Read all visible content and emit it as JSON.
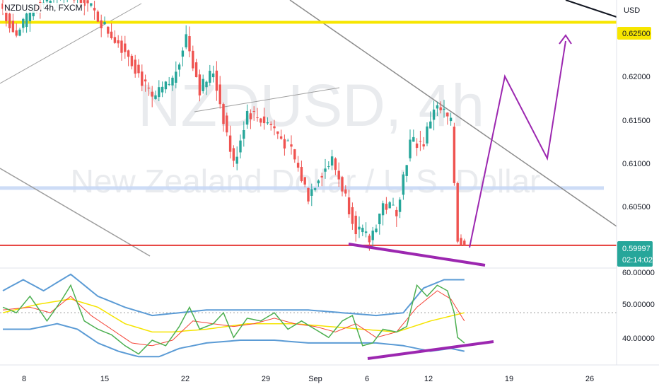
{
  "header": {
    "symbol": "NZDUSD, 4h, FXCM"
  },
  "watermark": {
    "symbol": "NZDUSD, 4h",
    "description": "New Zealand Dollar / U.S. Dollar"
  },
  "price_axis": {
    "currency": "USD",
    "ticks": [
      "0.62000",
      "0.61500",
      "0.61000",
      "0.60500"
    ],
    "resistance_label": "0.62500",
    "current_price": "0.59997",
    "countdown": "02:14:02"
  },
  "indicator_axis": {
    "ticks": [
      "60.00000",
      "50.00000",
      "40.00000"
    ]
  },
  "time_axis": {
    "ticks": [
      "8",
      "15",
      "22",
      "29",
      "Sep",
      "6",
      "12",
      "19",
      "26"
    ]
  },
  "colors": {
    "up": "#26a69a",
    "down": "#ef5350",
    "resistance": "#f7e600",
    "support": "#e53935",
    "zone": "#c8d8f5",
    "projection": "#9c27b0",
    "divergence": "#9c27b0",
    "trendline": "#9e9e9e",
    "rsi": "#4caf50",
    "rsi_ma": "#f44336",
    "bands": "#5b9bd5",
    "basis": "#f5e400",
    "price_label": "#26a69a"
  },
  "chart_data": [
    {
      "type": "candlestick",
      "title": "NZDUSD, 4h, FXCM",
      "ylim": [
        0.5975,
        0.6275
      ],
      "levels": {
        "resistance": 0.625,
        "support": 0.59997,
        "zone": 0.6064
      },
      "x_ticks": [
        "8",
        "15",
        "22",
        "29",
        "Sep",
        "6",
        "12",
        "19",
        "26"
      ],
      "anchors": [
        {
          "i": 0,
          "c": 0.6265
        },
        {
          "i": 4,
          "c": 0.6235
        },
        {
          "i": 10,
          "c": 0.627
        },
        {
          "i": 18,
          "c": 0.628
        },
        {
          "i": 24,
          "c": 0.6275
        },
        {
          "i": 30,
          "c": 0.6245
        },
        {
          "i": 37,
          "c": 0.6215
        },
        {
          "i": 44,
          "c": 0.6162
        },
        {
          "i": 50,
          "c": 0.6185
        },
        {
          "i": 54,
          "c": 0.6235
        },
        {
          "i": 58,
          "c": 0.6175
        },
        {
          "i": 62,
          "c": 0.6195
        },
        {
          "i": 68,
          "c": 0.609
        },
        {
          "i": 72,
          "c": 0.615
        },
        {
          "i": 79,
          "c": 0.6135
        },
        {
          "i": 85,
          "c": 0.6105
        },
        {
          "i": 90,
          "c": 0.6055
        },
        {
          "i": 93,
          "c": 0.6078
        },
        {
          "i": 97,
          "c": 0.6095
        },
        {
          "i": 100,
          "c": 0.6065
        },
        {
          "i": 104,
          "c": 0.602
        },
        {
          "i": 108,
          "c": 0.6005
        },
        {
          "i": 112,
          "c": 0.6045
        },
        {
          "i": 116,
          "c": 0.604
        },
        {
          "i": 120,
          "c": 0.6115
        },
        {
          "i": 124,
          "c": 0.6115
        },
        {
          "i": 127,
          "c": 0.6155
        },
        {
          "i": 130,
          "c": 0.6148
        },
        {
          "i": 132,
          "c": 0.6135
        },
        {
          "i": 134,
          "c": 0.6008
        },
        {
          "i": 136,
          "c": 0.59997
        }
      ]
    },
    {
      "type": "line",
      "ylim": [
        31,
        66
      ],
      "y_ticks": [
        60,
        50,
        40
      ],
      "series": [
        {
          "key": "rsi",
          "anchors": [
            {
              "i": 0,
              "v": 52
            },
            {
              "i": 4,
              "v": 50
            },
            {
              "i": 8,
              "v": 56
            },
            {
              "i": 13,
              "v": 47
            },
            {
              "i": 17,
              "v": 54
            },
            {
              "i": 20,
              "v": 60
            },
            {
              "i": 24,
              "v": 47
            },
            {
              "i": 28,
              "v": 44
            },
            {
              "i": 32,
              "v": 42
            },
            {
              "i": 36,
              "v": 38
            },
            {
              "i": 40,
              "v": 35
            },
            {
              "i": 44,
              "v": 40
            },
            {
              "i": 48,
              "v": 38
            },
            {
              "i": 52,
              "v": 45
            },
            {
              "i": 55,
              "v": 52
            },
            {
              "i": 58,
              "v": 44
            },
            {
              "i": 62,
              "v": 46
            },
            {
              "i": 65,
              "v": 50
            },
            {
              "i": 68,
              "v": 41
            },
            {
              "i": 72,
              "v": 48
            },
            {
              "i": 76,
              "v": 47
            },
            {
              "i": 80,
              "v": 50
            },
            {
              "i": 84,
              "v": 44
            },
            {
              "i": 88,
              "v": 47
            },
            {
              "i": 92,
              "v": 44
            },
            {
              "i": 96,
              "v": 41
            },
            {
              "i": 100,
              "v": 47
            },
            {
              "i": 103,
              "v": 49
            },
            {
              "i": 106,
              "v": 38
            },
            {
              "i": 109,
              "v": 39
            },
            {
              "i": 112,
              "v": 44
            },
            {
              "i": 116,
              "v": 43
            },
            {
              "i": 119,
              "v": 45
            },
            {
              "i": 122,
              "v": 60
            },
            {
              "i": 125,
              "v": 56
            },
            {
              "i": 128,
              "v": 60
            },
            {
              "i": 131,
              "v": 58
            },
            {
              "i": 133,
              "v": 50
            },
            {
              "i": 134,
              "v": 41
            },
            {
              "i": 136,
              "v": 39
            }
          ]
        },
        {
          "key": "rsi_ma",
          "anchors": [
            {
              "i": 0,
              "v": 51
            },
            {
              "i": 8,
              "v": 52
            },
            {
              "i": 14,
              "v": 50
            },
            {
              "i": 20,
              "v": 56
            },
            {
              "i": 26,
              "v": 49
            },
            {
              "i": 32,
              "v": 44
            },
            {
              "i": 38,
              "v": 39
            },
            {
              "i": 44,
              "v": 38
            },
            {
              "i": 50,
              "v": 40
            },
            {
              "i": 56,
              "v": 47
            },
            {
              "i": 62,
              "v": 46
            },
            {
              "i": 68,
              "v": 45
            },
            {
              "i": 74,
              "v": 46
            },
            {
              "i": 80,
              "v": 48
            },
            {
              "i": 86,
              "v": 46
            },
            {
              "i": 92,
              "v": 45
            },
            {
              "i": 98,
              "v": 43
            },
            {
              "i": 104,
              "v": 46
            },
            {
              "i": 110,
              "v": 41
            },
            {
              "i": 116,
              "v": 43
            },
            {
              "i": 122,
              "v": 52
            },
            {
              "i": 128,
              "v": 58
            },
            {
              "i": 132,
              "v": 55
            },
            {
              "i": 136,
              "v": 47
            }
          ]
        },
        {
          "key": "basis",
          "anchors": [
            {
              "i": 0,
              "v": 50
            },
            {
              "i": 10,
              "v": 53
            },
            {
              "i": 20,
              "v": 55
            },
            {
              "i": 28,
              "v": 52
            },
            {
              "i": 36,
              "v": 46
            },
            {
              "i": 44,
              "v": 43
            },
            {
              "i": 50,
              "v": 43
            },
            {
              "i": 60,
              "v": 44
            },
            {
              "i": 72,
              "v": 46
            },
            {
              "i": 86,
              "v": 46
            },
            {
              "i": 96,
              "v": 45
            },
            {
              "i": 106,
              "v": 44
            },
            {
              "i": 116,
              "v": 43
            },
            {
              "i": 126,
              "v": 47
            },
            {
              "i": 136,
              "v": 50
            }
          ]
        },
        {
          "key": "upper_band",
          "anchors": [
            {
              "i": 0,
              "v": 58
            },
            {
              "i": 6,
              "v": 62
            },
            {
              "i": 12,
              "v": 58
            },
            {
              "i": 20,
              "v": 64
            },
            {
              "i": 28,
              "v": 56
            },
            {
              "i": 36,
              "v": 52
            },
            {
              "i": 44,
              "v": 49
            },
            {
              "i": 52,
              "v": 50
            },
            {
              "i": 60,
              "v": 51
            },
            {
              "i": 70,
              "v": 51
            },
            {
              "i": 80,
              "v": 51
            },
            {
              "i": 90,
              "v": 51
            },
            {
              "i": 100,
              "v": 50
            },
            {
              "i": 110,
              "v": 49
            },
            {
              "i": 118,
              "v": 50
            },
            {
              "i": 124,
              "v": 59
            },
            {
              "i": 130,
              "v": 62
            },
            {
              "i": 136,
              "v": 62
            }
          ]
        },
        {
          "key": "lower_band",
          "anchors": [
            {
              "i": 0,
              "v": 44
            },
            {
              "i": 8,
              "v": 44
            },
            {
              "i": 16,
              "v": 46
            },
            {
              "i": 22,
              "v": 44
            },
            {
              "i": 28,
              "v": 39
            },
            {
              "i": 34,
              "v": 36
            },
            {
              "i": 40,
              "v": 34
            },
            {
              "i": 46,
              "v": 34
            },
            {
              "i": 52,
              "v": 37
            },
            {
              "i": 60,
              "v": 39
            },
            {
              "i": 70,
              "v": 40
            },
            {
              "i": 80,
              "v": 40
            },
            {
              "i": 90,
              "v": 39
            },
            {
              "i": 100,
              "v": 39
            },
            {
              "i": 110,
              "v": 39
            },
            {
              "i": 118,
              "v": 38
            },
            {
              "i": 126,
              "v": 36
            },
            {
              "i": 132,
              "v": 37
            },
            {
              "i": 136,
              "v": 36
            }
          ]
        }
      ]
    }
  ]
}
